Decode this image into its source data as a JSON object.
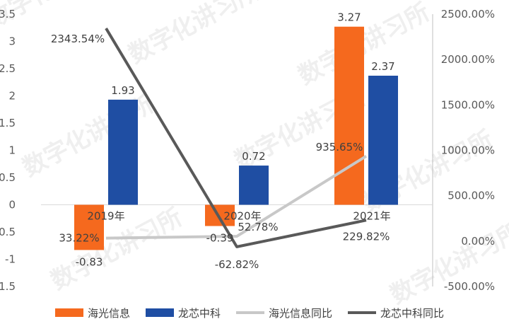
{
  "chart_data": {
    "type": "bar+line",
    "categories": [
      "2019年",
      "2020年",
      "2021年"
    ],
    "series": [
      {
        "name": "海光信息",
        "kind": "bar",
        "axis": "left",
        "color": "#F5691E",
        "values": [
          -0.83,
          -0.39,
          3.27
        ],
        "labels": [
          "-0.83",
          "-0.39",
          "3.27"
        ]
      },
      {
        "name": "龙芯中科",
        "kind": "bar",
        "axis": "left",
        "color": "#1F4EA3",
        "values": [
          1.93,
          0.72,
          2.37
        ],
        "labels": [
          "1.93",
          "0.72",
          "2.37"
        ]
      },
      {
        "name": "海光信息同比",
        "kind": "line",
        "axis": "right",
        "color": "#C8C8C8",
        "values": [
          33.22,
          52.78,
          935.65
        ],
        "labels": [
          "33.22%",
          "52.78%",
          "935.65%"
        ]
      },
      {
        "name": "龙芯中科同比",
        "kind": "line",
        "axis": "right",
        "color": "#595959",
        "values": [
          2343.54,
          -62.82,
          229.82
        ],
        "labels": [
          "2343.54%",
          "-62.82%",
          "229.82%"
        ]
      }
    ],
    "y_left": {
      "min": -1.5,
      "max": 3.5,
      "ticks": [
        "3.5",
        "3",
        "2.5",
        "2",
        "1.5",
        "1",
        "0.5",
        "0",
        "-0.5",
        "-1",
        "-1.5"
      ]
    },
    "y_right": {
      "min": -500,
      "max": 2500,
      "ticks": [
        "2500.00%",
        "2000.00%",
        "1500.00%",
        "1000.00%",
        "500.00%",
        "0.00%",
        "-500.00%"
      ]
    },
    "grid": false,
    "legend": "bottom"
  },
  "watermark": "数字化讲习所"
}
